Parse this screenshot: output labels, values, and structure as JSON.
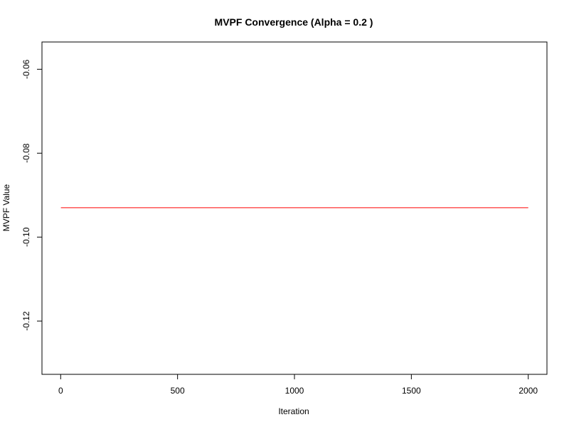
{
  "chart_data": {
    "type": "line",
    "title": "MVPF Convergence (Alpha = 0.2 )",
    "xlabel": "Iteration",
    "ylabel": "MVPF Value",
    "xlim": [
      -80,
      2080
    ],
    "ylim": [
      -0.1327,
      -0.0535
    ],
    "x_ticks": [
      0,
      500,
      1000,
      1500,
      2000
    ],
    "x_tick_labels": [
      "0",
      "500",
      "1000",
      "1500",
      "2000"
    ],
    "y_ticks": [
      -0.12,
      -0.1,
      -0.08,
      -0.06
    ],
    "y_tick_labels": [
      "-0.12",
      "-0.10",
      "-0.08",
      "-0.06"
    ],
    "grid": false,
    "series": [
      {
        "color": "#ff0000",
        "x": [
          1,
          2000
        ],
        "y": [
          -0.093,
          -0.093
        ]
      }
    ]
  }
}
